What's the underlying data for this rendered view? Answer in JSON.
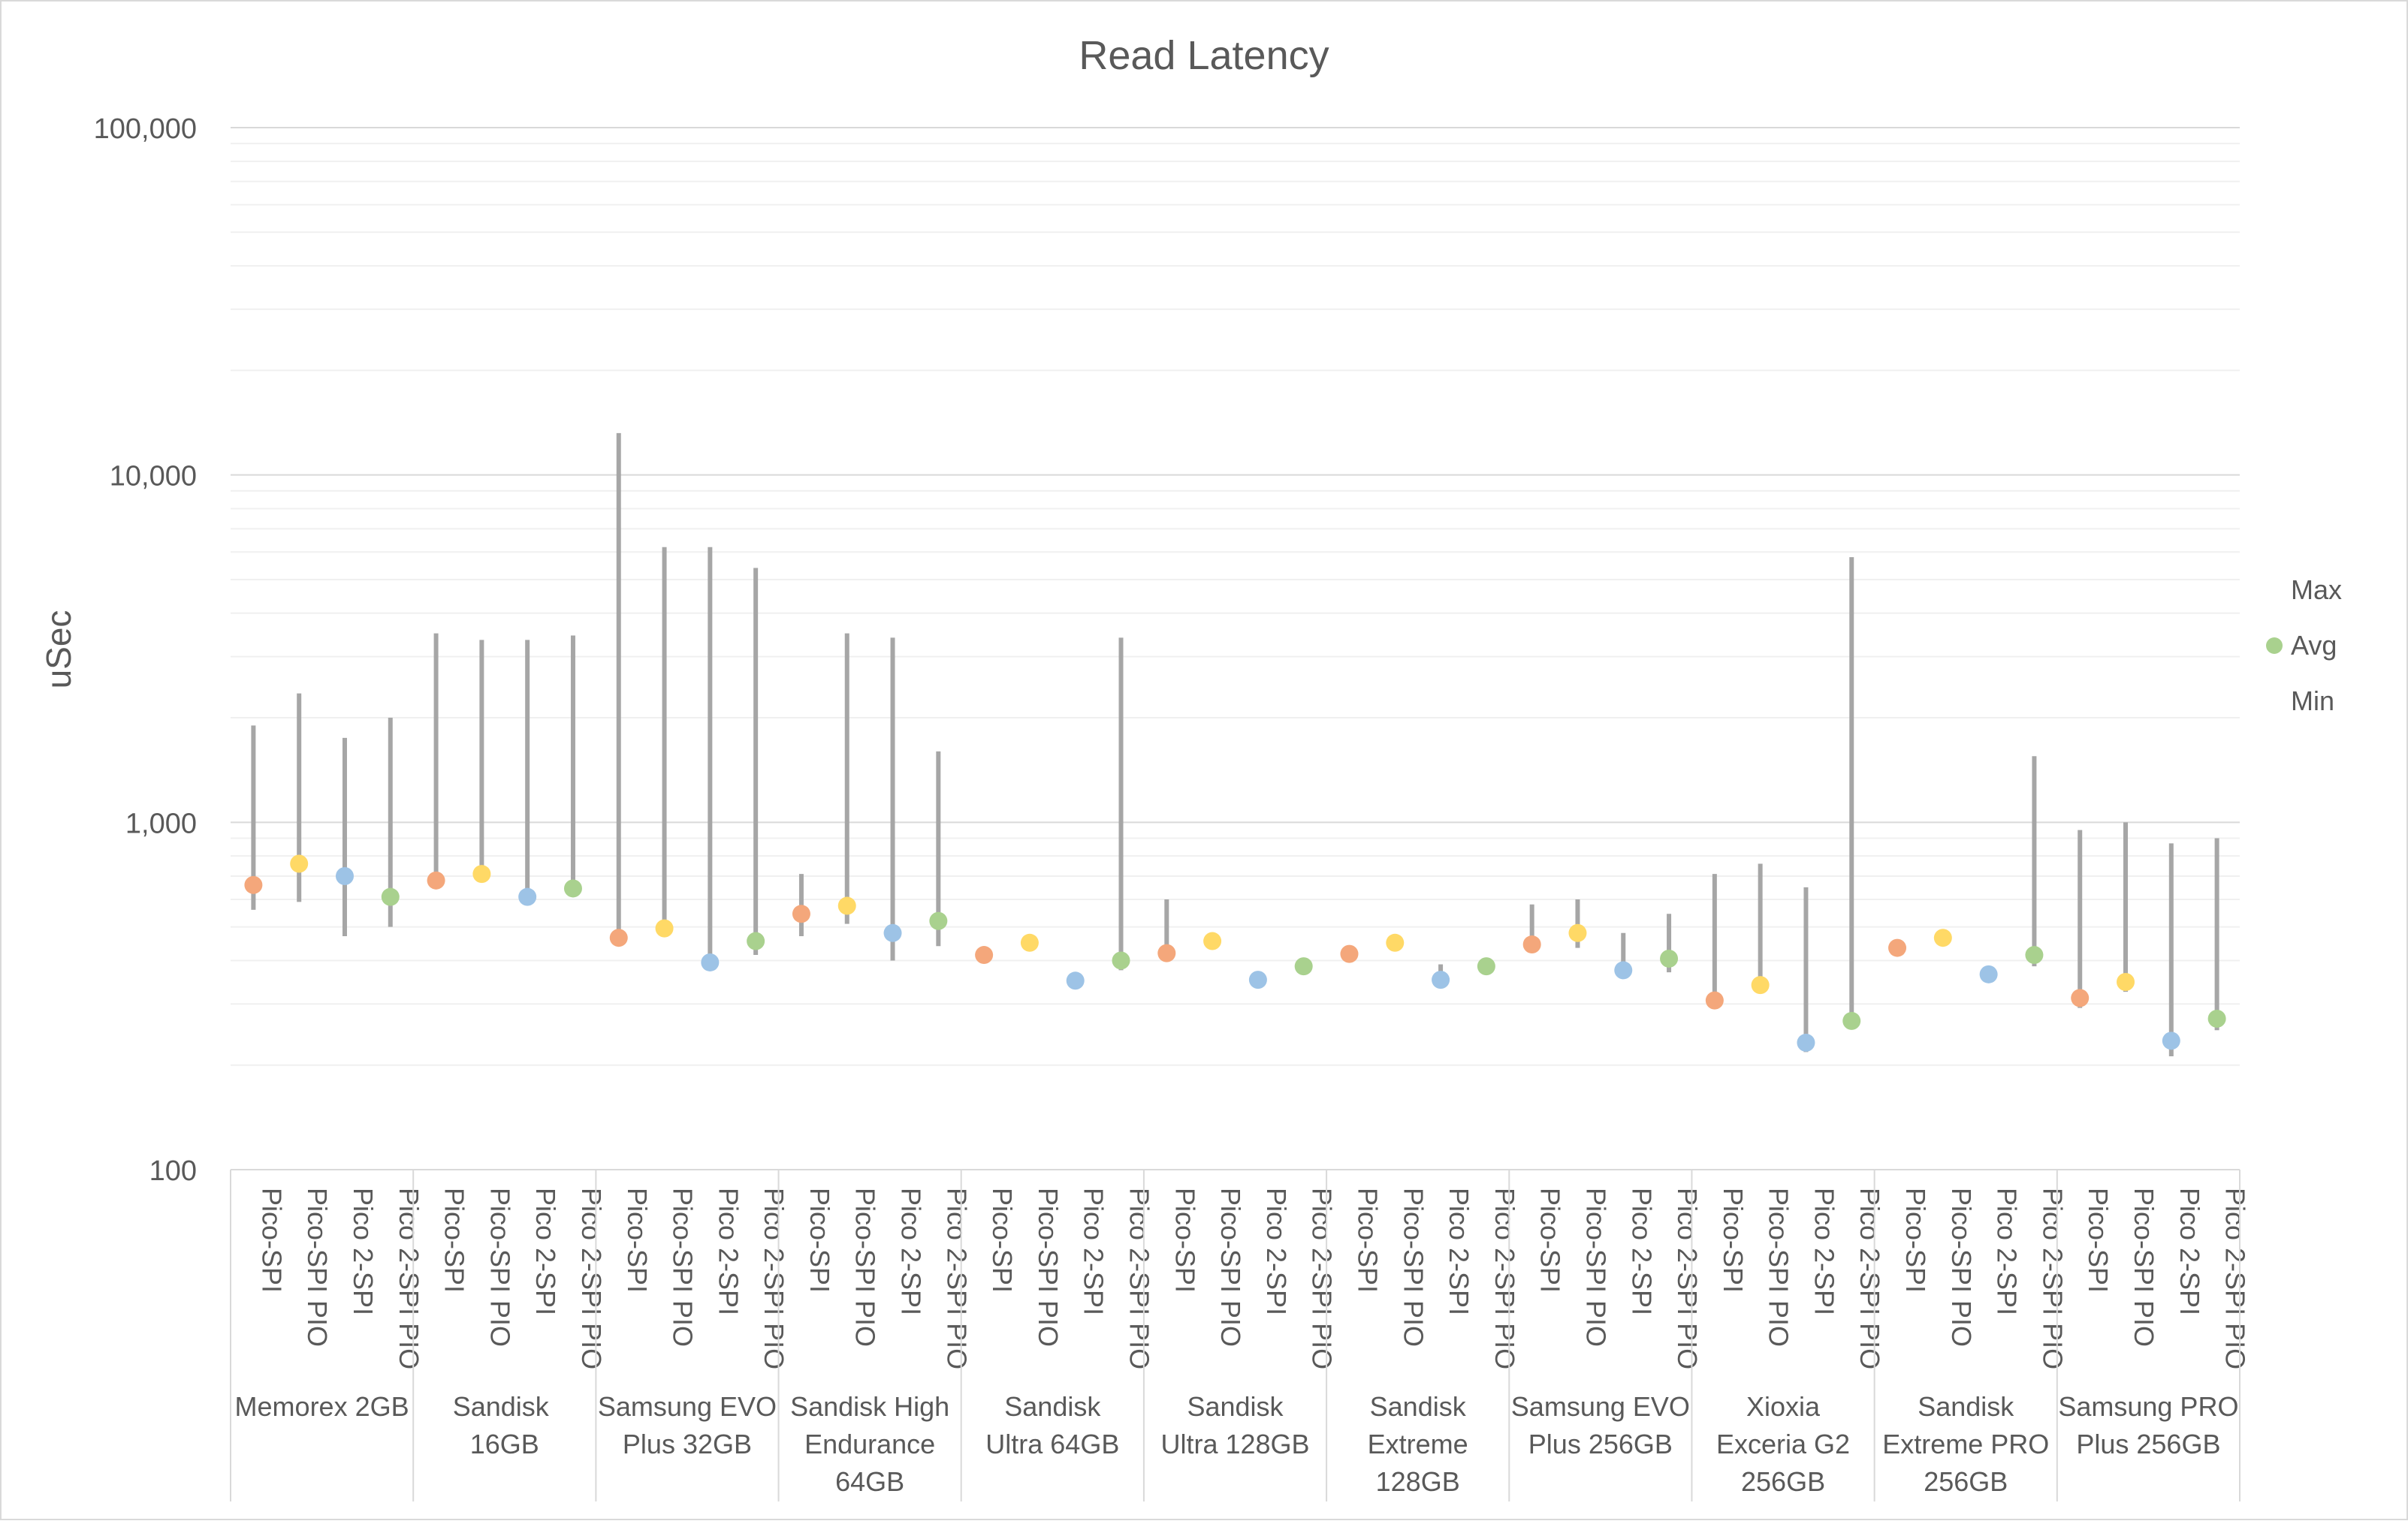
{
  "chart_data": {
    "type": "scatter",
    "title": "Read Latency",
    "ylabel": "uSec",
    "xlabel": "",
    "y_scale": "log",
    "ylim": [
      100,
      100000
    ],
    "y_ticks": [
      100,
      1000,
      10000,
      100000
    ],
    "y_tick_labels": [
      "100",
      "1,000",
      "10,000",
      "100,000"
    ],
    "grid": true,
    "legend_position": "right",
    "legend": [
      "Max",
      "Avg",
      "Min"
    ],
    "variant_colors": [
      "#F4A77B",
      "#FFD966",
      "#9DC3E6",
      "#A9D18E"
    ],
    "range_line_color": "#A6A6A6",
    "groups": [
      {
        "label": "Memorex 2GB",
        "points": [
          {
            "variant": "Pico-SPI",
            "max": 1900,
            "avg": 660,
            "min": 560
          },
          {
            "variant": "Pico-SPI PIO",
            "max": 2350,
            "avg": 760,
            "min": 590
          },
          {
            "variant": "Pico 2-SPI",
            "max": 1750,
            "avg": 700,
            "min": 470
          },
          {
            "variant": "Pico 2-SPI PIO",
            "max": 2000,
            "avg": 610,
            "min": 500
          }
        ]
      },
      {
        "label": "Sandisk  16GB",
        "points": [
          {
            "variant": "Pico-SPI",
            "max": 3500,
            "avg": 680,
            "min": 680
          },
          {
            "variant": "Pico-SPI PIO",
            "max": 3350,
            "avg": 710,
            "min": 710
          },
          {
            "variant": "Pico 2-SPI",
            "max": 3350,
            "avg": 610,
            "min": 610
          },
          {
            "variant": "Pico 2-SPI PIO",
            "max": 3450,
            "avg": 645,
            "min": 645
          }
        ]
      },
      {
        "label": "Samsung EVO Plus 32GB",
        "points": [
          {
            "variant": "Pico-SPI",
            "max": 13200,
            "avg": 465,
            "min": 465
          },
          {
            "variant": "Pico-SPI PIO",
            "max": 6200,
            "avg": 495,
            "min": 495
          },
          {
            "variant": "Pico 2-SPI",
            "max": 6200,
            "avg": 395,
            "min": 375
          },
          {
            "variant": "Pico 2-SPI PIO",
            "max": 5400,
            "avg": 455,
            "min": 415
          }
        ]
      },
      {
        "label": "Sandisk High Endurance 64GB",
        "points": [
          {
            "variant": "Pico-SPI",
            "max": 710,
            "avg": 545,
            "min": 470
          },
          {
            "variant": "Pico-SPI PIO",
            "max": 3500,
            "avg": 575,
            "min": 510
          },
          {
            "variant": "Pico 2-SPI",
            "max": 3400,
            "avg": 480,
            "min": 400
          },
          {
            "variant": "Pico 2-SPI PIO",
            "max": 1600,
            "avg": 520,
            "min": 440
          }
        ]
      },
      {
        "label": "Sandisk Ultra 64GB",
        "points": [
          {
            "variant": "Pico-SPI",
            "max": 415,
            "avg": 415,
            "min": 415
          },
          {
            "variant": "Pico-SPI PIO",
            "max": 450,
            "avg": 450,
            "min": 450
          },
          {
            "variant": "Pico 2-SPI",
            "max": 350,
            "avg": 350,
            "min": 350
          },
          {
            "variant": "Pico 2-SPI PIO",
            "max": 3400,
            "avg": 400,
            "min": 375
          }
        ]
      },
      {
        "label": "Sandisk Ultra 128GB",
        "points": [
          {
            "variant": "Pico-SPI",
            "max": 600,
            "avg": 420,
            "min": 420
          },
          {
            "variant": "Pico-SPI PIO",
            "max": 455,
            "avg": 455,
            "min": 455
          },
          {
            "variant": "Pico 2-SPI",
            "max": 370,
            "avg": 352,
            "min": 352
          },
          {
            "variant": "Pico 2-SPI PIO",
            "max": 385,
            "avg": 385,
            "min": 385
          }
        ]
      },
      {
        "label": "Sandisk Extreme 128GB",
        "points": [
          {
            "variant": "Pico-SPI",
            "max": 418,
            "avg": 418,
            "min": 418
          },
          {
            "variant": "Pico-SPI PIO",
            "max": 450,
            "avg": 450,
            "min": 450
          },
          {
            "variant": "Pico 2-SPI",
            "max": 390,
            "avg": 352,
            "min": 352
          },
          {
            "variant": "Pico 2-SPI PIO",
            "max": 385,
            "avg": 385,
            "min": 385
          }
        ]
      },
      {
        "label": "Samsung EVO Plus 256GB",
        "points": [
          {
            "variant": "Pico-SPI",
            "max": 580,
            "avg": 445,
            "min": 445
          },
          {
            "variant": "Pico-SPI PIO",
            "max": 600,
            "avg": 480,
            "min": 435
          },
          {
            "variant": "Pico 2-SPI",
            "max": 480,
            "avg": 375,
            "min": 375
          },
          {
            "variant": "Pico 2-SPI PIO",
            "max": 545,
            "avg": 405,
            "min": 370
          }
        ]
      },
      {
        "label": "Xioxia Exceria G2 256GB",
        "points": [
          {
            "variant": "Pico-SPI",
            "max": 710,
            "avg": 307,
            "min": 307
          },
          {
            "variant": "Pico-SPI PIO",
            "max": 760,
            "avg": 340,
            "min": 340
          },
          {
            "variant": "Pico 2-SPI",
            "max": 650,
            "avg": 232,
            "min": 218
          },
          {
            "variant": "Pico 2-SPI PIO",
            "max": 5800,
            "avg": 268,
            "min": 268
          }
        ]
      },
      {
        "label": "Sandisk Extreme PRO 256GB",
        "points": [
          {
            "variant": "Pico-SPI",
            "max": 435,
            "avg": 435,
            "min": 435
          },
          {
            "variant": "Pico-SPI PIO",
            "max": 465,
            "avg": 465,
            "min": 465
          },
          {
            "variant": "Pico 2-SPI",
            "max": 365,
            "avg": 365,
            "min": 365
          },
          {
            "variant": "Pico 2-SPI PIO",
            "max": 1550,
            "avg": 415,
            "min": 385
          }
        ]
      },
      {
        "label": "Samsung PRO Plus 256GB",
        "points": [
          {
            "variant": "Pico-SPI",
            "max": 950,
            "avg": 312,
            "min": 292
          },
          {
            "variant": "Pico-SPI PIO",
            "max": 1000,
            "avg": 347,
            "min": 325
          },
          {
            "variant": "Pico 2-SPI",
            "max": 870,
            "avg": 235,
            "min": 212
          },
          {
            "variant": "Pico 2-SPI PIO",
            "max": 900,
            "avg": 272,
            "min": 252
          }
        ]
      }
    ]
  }
}
